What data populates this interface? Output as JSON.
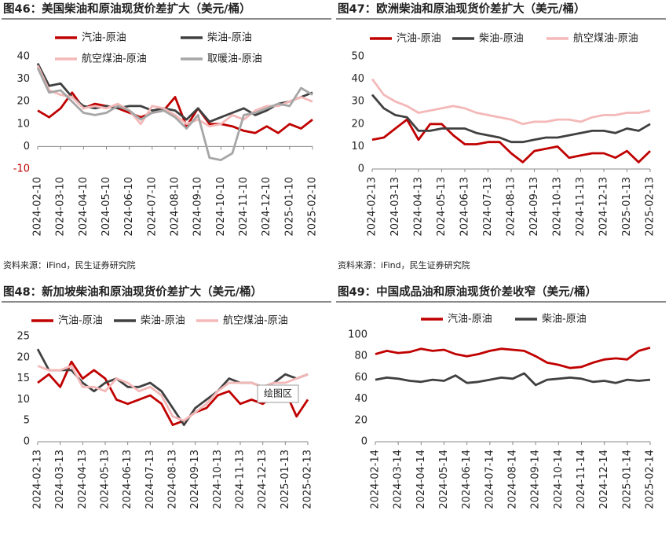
{
  "chart_data": [
    {
      "type": "line",
      "title": "图46：美国柴油和原油现货价差扩大（美元/桶）",
      "source": "资料来源：iFind，民生证券研究院",
      "categories": [
        "2024-02-10",
        null,
        "2024-03-10",
        null,
        "2024-04-10",
        null,
        "2024-05-10",
        null,
        "2024-06-10",
        null,
        "2024-07-10",
        null,
        "2024-08-10",
        null,
        "2024-09-10",
        null,
        "2024-10-10",
        null,
        "2024-11-10",
        null,
        "2024-12-10",
        null,
        "2025-01-10",
        null,
        "2025-02-10"
      ],
      "ylim": [
        -10,
        40
      ],
      "yticks": [
        -10,
        0,
        10,
        20,
        30,
        40
      ],
      "negative_tick_color": "#c00000",
      "series": [
        {
          "name": "汽油-原油",
          "color": "#c00000",
          "values": [
            16,
            13,
            17,
            24,
            17,
            19,
            18,
            17,
            15,
            13,
            15,
            16,
            22,
            9,
            17,
            10,
            10,
            9,
            7,
            6,
            9,
            6,
            10,
            8,
            12
          ]
        },
        {
          "name": "柴油-原油",
          "color": "#404040",
          "values": [
            37,
            27,
            28,
            22,
            18,
            17,
            18,
            17,
            18,
            18,
            16,
            17,
            16,
            12,
            17,
            11,
            13,
            15,
            17,
            14,
            16,
            19,
            20,
            22,
            24
          ]
        },
        {
          "name": "航空煤油-原油",
          "color": "#f4b8b8",
          "values": [
            36,
            25,
            23,
            22,
            17,
            18,
            17,
            19,
            16,
            10,
            18,
            17,
            14,
            10,
            12,
            9,
            10,
            14,
            12,
            16,
            18,
            18,
            20,
            22,
            20
          ]
        },
        {
          "name": "取暖油-原油",
          "color": "#a6a6a6",
          "values": [
            35,
            24,
            25,
            20,
            15,
            14,
            15,
            18,
            16,
            12,
            15,
            16,
            13,
            8,
            14,
            -5,
            -6,
            -3,
            14,
            15,
            17,
            19,
            18,
            26,
            23
          ]
        }
      ]
    },
    {
      "type": "line",
      "title": "图47：欧洲柴油和原油现货价差扩大（美元/桶）",
      "source": "资料来源：iFind，民生证券研究院",
      "categories": [
        "2024-02-13",
        null,
        "2024-03-13",
        null,
        "2024-04-13",
        null,
        "2024-05-13",
        null,
        "2024-06-13",
        null,
        "2024-07-13",
        null,
        "2024-08-13",
        null,
        "2024-09-13",
        null,
        "2024-10-13",
        null,
        "2024-11-13",
        null,
        "2024-12-13",
        null,
        "2025-01-13",
        null,
        "2025-02-13"
      ],
      "ylim": [
        0,
        50
      ],
      "yticks": [
        0,
        10,
        20,
        30,
        40,
        50
      ],
      "series": [
        {
          "name": "汽油-原油",
          "color": "#c00000",
          "values": [
            13,
            14,
            18,
            22,
            13,
            20,
            20,
            15,
            11,
            11,
            12,
            12,
            7,
            3,
            8,
            9,
            10,
            5,
            6,
            7,
            7,
            5,
            8,
            3,
            8
          ]
        },
        {
          "name": "柴油-原油",
          "color": "#404040",
          "values": [
            33,
            27,
            24,
            23,
            17,
            17,
            18,
            18,
            18,
            16,
            15,
            14,
            12,
            12,
            13,
            14,
            14,
            15,
            16,
            17,
            17,
            16,
            18,
            17,
            20
          ]
        },
        {
          "name": "航空煤油-原油",
          "color": "#f4b8b8",
          "values": [
            40,
            33,
            30,
            28,
            25,
            26,
            27,
            28,
            27,
            25,
            24,
            23,
            22,
            20,
            21,
            21,
            22,
            22,
            21,
            23,
            24,
            24,
            25,
            25,
            26
          ]
        }
      ]
    },
    {
      "type": "line",
      "title": "图48：新加坡柴油和原油现货价差扩大（美元/桶）",
      "source": "资料来源：iFind，民生证券研究院",
      "annotation": "绘图区",
      "categories": [
        "2024-02-13",
        null,
        "2024-03-13",
        null,
        "2024-04-13",
        null,
        "2024-05-13",
        null,
        "2024-06-13",
        null,
        "2024-07-13",
        null,
        "2024-08-13",
        null,
        "2024-09-13",
        null,
        "2024-10-13",
        null,
        "2024-11-13",
        null,
        "2024-12-13",
        null,
        "2025-01-13",
        null,
        "2025-02-13"
      ],
      "ylim": [
        0,
        25
      ],
      "yticks": [
        0,
        5,
        10,
        15,
        20,
        25
      ],
      "series": [
        {
          "name": "汽油-原油",
          "color": "#c00000",
          "values": [
            14,
            16,
            13,
            19,
            15,
            17,
            15,
            10,
            9,
            10,
            11,
            9,
            4,
            5,
            7,
            8,
            11,
            12,
            9,
            10,
            9,
            11,
            12,
            6,
            10
          ]
        },
        {
          "name": "柴油-原油",
          "color": "#404040",
          "values": [
            22,
            17,
            17,
            17,
            14,
            12,
            14,
            15,
            13,
            13,
            14,
            12,
            8,
            4,
            8,
            10,
            12,
            15,
            14,
            14,
            13,
            14,
            16,
            15,
            16
          ]
        },
        {
          "name": "航空煤油-原油",
          "color": "#f4b8b8",
          "values": [
            18,
            17,
            17,
            18,
            13,
            13,
            12,
            15,
            14,
            12,
            13,
            11,
            6,
            5,
            7,
            9,
            12,
            14,
            14,
            14,
            13,
            14,
            14,
            15,
            16
          ]
        }
      ]
    },
    {
      "type": "line",
      "title": "图49：中国成品油和原油现货价差收窄（美元/桶）",
      "source": "资料来源：iFind，民生证券研究院",
      "categories": [
        "2024-02-14",
        null,
        "2024-03-14",
        null,
        "2024-04-14",
        null,
        "2024-05-14",
        null,
        "2024-06-14",
        null,
        "2024-07-14",
        null,
        "2024-08-14",
        null,
        "2024-09-14",
        null,
        "2024-10-14",
        null,
        "2024-11-14",
        null,
        "2024-12-14",
        null,
        "2025-01-14",
        null,
        "2025-02-14"
      ],
      "ylim": [
        0,
        100
      ],
      "yticks": [
        0,
        20,
        40,
        60,
        80,
        100
      ],
      "series": [
        {
          "name": "汽油-原油",
          "color": "#c00000",
          "values": [
            82,
            85,
            83,
            84,
            87,
            85,
            86,
            82,
            80,
            82,
            85,
            87,
            86,
            85,
            80,
            74,
            72,
            69,
            70,
            74,
            77,
            78,
            77,
            85,
            88
          ]
        },
        {
          "name": "柴油-原油",
          "color": "#404040",
          "values": [
            58,
            60,
            59,
            57,
            56,
            58,
            57,
            62,
            55,
            56,
            58,
            60,
            59,
            64,
            53,
            58,
            59,
            60,
            59,
            56,
            57,
            55,
            58,
            57,
            58
          ]
        }
      ]
    }
  ]
}
